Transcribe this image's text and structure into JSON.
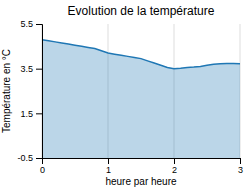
{
  "chart_data": {
    "type": "area",
    "title": "Evolution de la température",
    "x_label": "heure par heure",
    "y_label": "Température en °C",
    "x": [
      0,
      0.1,
      0.2,
      0.3,
      0.4,
      0.5,
      0.6,
      0.7,
      0.8,
      0.9,
      1.0,
      1.1,
      1.2,
      1.3,
      1.4,
      1.5,
      1.6,
      1.7,
      1.8,
      1.9,
      2.0,
      2.1,
      2.2,
      2.3,
      2.4,
      2.5,
      2.6,
      2.7,
      2.8,
      2.9,
      3.0
    ],
    "y": [
      4.8,
      4.75,
      4.7,
      4.65,
      4.6,
      4.55,
      4.5,
      4.45,
      4.4,
      4.3,
      4.2,
      4.15,
      4.1,
      4.05,
      4.0,
      3.95,
      3.85,
      3.75,
      3.65,
      3.55,
      3.5,
      3.52,
      3.55,
      3.57,
      3.6,
      3.65,
      3.7,
      3.72,
      3.73,
      3.73,
      3.72
    ],
    "xlim": [
      0,
      3
    ],
    "ylim": [
      -0.5,
      5.5
    ],
    "xticks": [
      0,
      1,
      2,
      3
    ],
    "yticks": [
      -0.5,
      1.5,
      3.5,
      5.5
    ],
    "grid": "x"
  }
}
